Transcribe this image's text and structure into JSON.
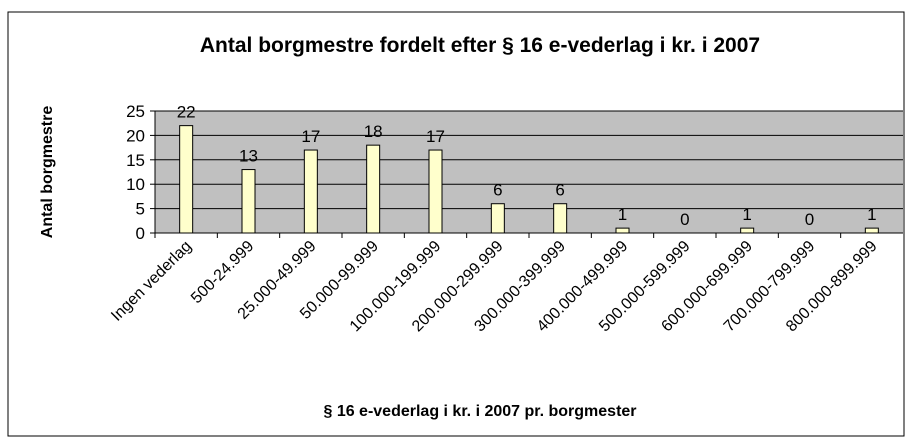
{
  "chart_data": {
    "type": "bar",
    "title": "Antal borgmestre fordelt efter § 16 e-vederlag i kr. i 2007",
    "x_label": "§ 16 e-vederlag i kr. i 2007 pr. borgmester",
    "y_label": "Antal borgmestre",
    "categories": [
      "Ingen vederlag",
      "500-24.999",
      "25.000-49.999",
      "50.000-99.999",
      "100.000-199.999",
      "200.000-299.999",
      "300.000-399.999",
      "400.000-499.999",
      "500.000-599.999",
      "600.000-699.999",
      "700.000-799.999",
      "800.000-899.999"
    ],
    "values": [
      22,
      13,
      17,
      18,
      17,
      6,
      6,
      1,
      0,
      1,
      0,
      1
    ],
    "color": "#ffffcc",
    "ylim": [
      0,
      25
    ],
    "yticks": [
      0,
      5,
      10,
      15,
      20,
      25
    ],
    "grid": true
  }
}
